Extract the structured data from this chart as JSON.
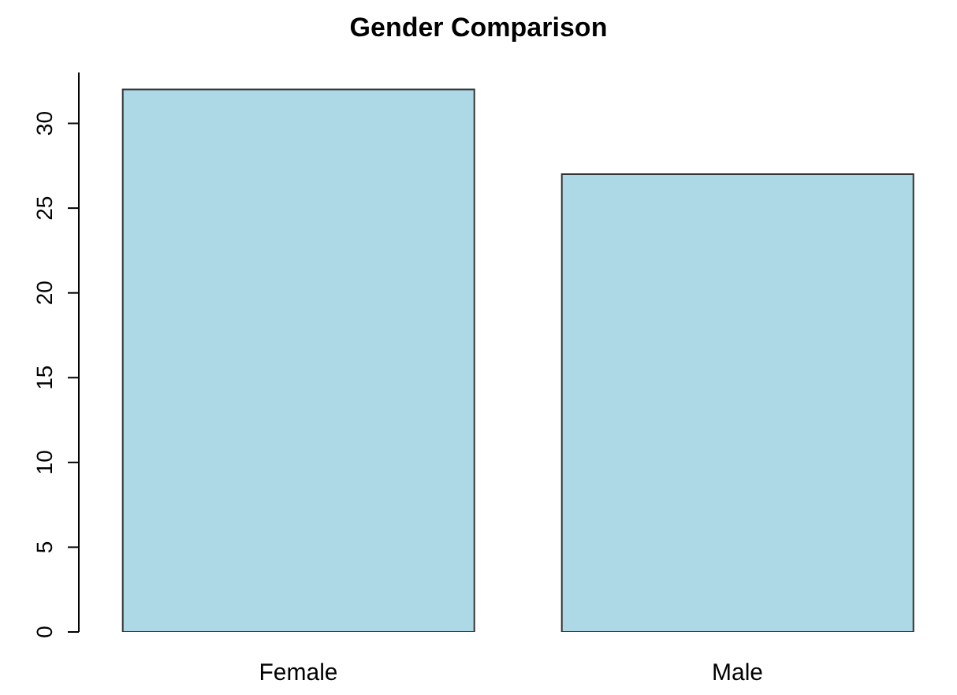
{
  "chart_data": {
    "type": "bar",
    "title": "Gender Comparison",
    "categories": [
      "Female",
      "Male"
    ],
    "values": [
      32,
      27
    ],
    "color": "#add8e6",
    "ylim": [
      0,
      33
    ],
    "yticks": [
      0,
      5,
      10,
      15,
      20,
      25,
      30
    ],
    "grid": false
  }
}
